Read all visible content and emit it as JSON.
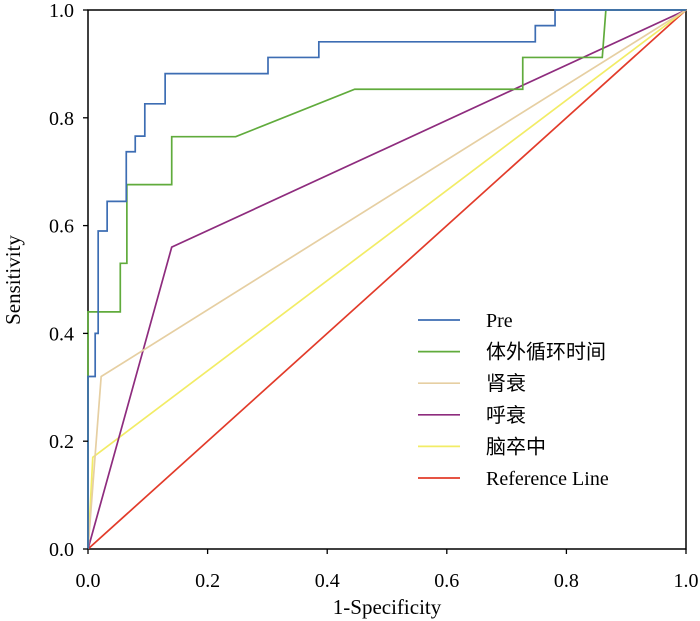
{
  "chart_data": {
    "type": "line",
    "xlabel": "1-Specificity",
    "ylabel": "Sensitivity",
    "xlim": [
      0,
      1
    ],
    "ylim": [
      0,
      1
    ],
    "xticks": [
      "0.0",
      "0.2",
      "0.4",
      "0.6",
      "0.8",
      "1.0"
    ],
    "yticks": [
      "0.0",
      "0.2",
      "0.4",
      "0.6",
      "0.8",
      "1.0"
    ],
    "grid": false,
    "legend_position": "bottom-right",
    "series": [
      {
        "name": "Pre",
        "color": "#3d6db3",
        "points": [
          [
            0,
            0
          ],
          [
            0,
            0.32
          ],
          [
            0.012,
            0.32
          ],
          [
            0.012,
            0.4
          ],
          [
            0.017,
            0.4
          ],
          [
            0.017,
            0.59
          ],
          [
            0.032,
            0.59
          ],
          [
            0.032,
            0.645
          ],
          [
            0.064,
            0.645
          ],
          [
            0.064,
            0.737
          ],
          [
            0.079,
            0.737
          ],
          [
            0.079,
            0.766
          ],
          [
            0.095,
            0.766
          ],
          [
            0.095,
            0.826
          ],
          [
            0.129,
            0.826
          ],
          [
            0.129,
            0.882
          ],
          [
            0.301,
            0.882
          ],
          [
            0.301,
            0.912
          ],
          [
            0.386,
            0.912
          ],
          [
            0.386,
            0.941
          ],
          [
            0.748,
            0.941
          ],
          [
            0.748,
            0.971
          ],
          [
            0.781,
            0.971
          ],
          [
            0.781,
            1
          ],
          [
            1,
            1
          ]
        ]
      },
      {
        "name": "体外循环时间",
        "color": "#60ab3c",
        "points": [
          [
            0,
            0
          ],
          [
            0,
            0.44
          ],
          [
            0.054,
            0.44
          ],
          [
            0.054,
            0.53
          ],
          [
            0.065,
            0.53
          ],
          [
            0.065,
            0.676
          ],
          [
            0.14,
            0.676
          ],
          [
            0.14,
            0.765
          ],
          [
            0.247,
            0.765
          ],
          [
            0.446,
            0.853
          ],
          [
            0.727,
            0.853
          ],
          [
            0.727,
            0.912
          ],
          [
            0.86,
            0.912
          ],
          [
            0.866,
            1
          ],
          [
            1,
            1
          ]
        ]
      },
      {
        "name": "肾衰",
        "color": "#e6cfa2",
        "points": [
          [
            0,
            0
          ],
          [
            0.022,
            0.32
          ],
          [
            1,
            1
          ]
        ]
      },
      {
        "name": "呼衰",
        "color": "#8e2c7e",
        "points": [
          [
            0,
            0
          ],
          [
            0.14,
            0.56
          ],
          [
            1,
            1
          ]
        ]
      },
      {
        "name": "脑卒中",
        "color": "#f2ec66",
        "points": [
          [
            0,
            0
          ],
          [
            0.008,
            0.17
          ],
          [
            1,
            1
          ]
        ]
      },
      {
        "name": "Reference Line",
        "color": "#e23b2a",
        "points": [
          [
            0,
            0
          ],
          [
            1,
            1
          ]
        ]
      }
    ]
  }
}
